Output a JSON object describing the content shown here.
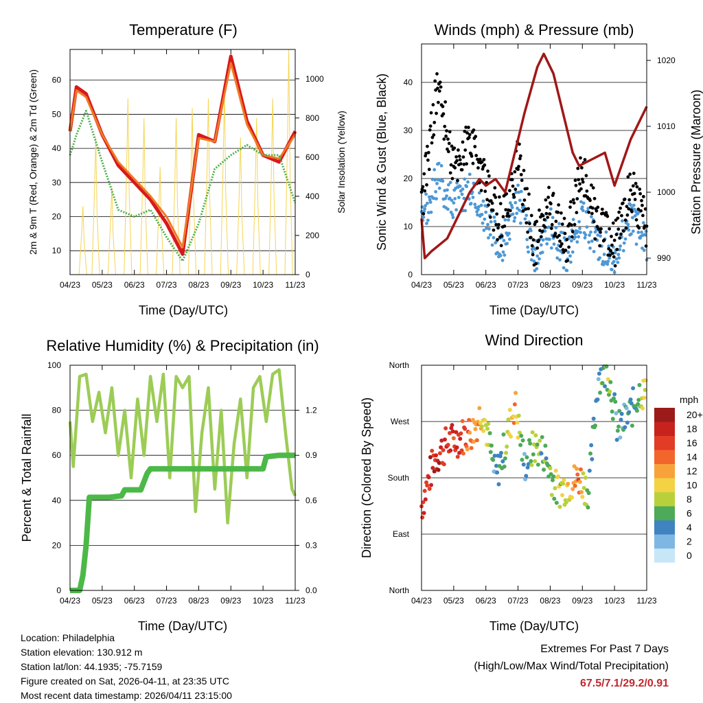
{
  "x_tick_labels": [
    "04/23",
    "05/23",
    "06/23",
    "07/23",
    "08/23",
    "09/23",
    "10/23",
    "11/23"
  ],
  "x_axis_title": "Time (Day/UTC)",
  "colors": {
    "temp_red": "#d7191c",
    "temp_orange": "#f07a24",
    "dewpoint_green": "#4daf4a",
    "solar_yellow": "#f5d451",
    "wind_blue": "#4d98d6",
    "gust_black": "#000000",
    "pressure_maroon": "#a01717",
    "rh_lightgreen": "#9ccc56",
    "precip_green": "#4cb848",
    "grid": "#000000"
  },
  "chart_data": [
    {
      "id": "temperature",
      "type": "line",
      "title": "Temperature (F)",
      "xlabel": "Time (Day/UTC)",
      "ylabel": "2m & 9m T (Red, Orange) & 2m Td (Green)",
      "y2label": "Solar Insolation (Yellow)",
      "ylim": [
        3,
        69
      ],
      "y2lim": [
        0,
        1150
      ],
      "yticks": [
        10,
        20,
        30,
        40,
        50,
        60
      ],
      "y2ticks": [
        0,
        200,
        400,
        600,
        800,
        1000
      ],
      "grid": true,
      "x": [
        0,
        0.2,
        0.5,
        1.0,
        1.5,
        2.0,
        2.5,
        3.0,
        3.5,
        4.0,
        4.5,
        5.0,
        5.5,
        6.0,
        6.5,
        7.0
      ],
      "series": [
        {
          "name": "2m T",
          "color": "#d7191c",
          "values": [
            45,
            58,
            56,
            44,
            35,
            30,
            25,
            18,
            9,
            44,
            42,
            67,
            48,
            38,
            36,
            45
          ]
        },
        {
          "name": "9m T",
          "color": "#f07a24",
          "values": [
            45,
            57,
            55,
            44,
            36,
            31,
            26,
            20,
            11,
            43,
            42,
            65,
            47,
            38,
            37,
            44
          ]
        },
        {
          "name": "2m Td",
          "color": "#4daf4a",
          "values": [
            38,
            44,
            51,
            36,
            22,
            20,
            22,
            14,
            7,
            18,
            34,
            38,
            41,
            38,
            38,
            24
          ]
        },
        {
          "name": "Solar Insolation",
          "color": "#f5d451",
          "axis": "y2",
          "peaks_x": [
            0.4,
            0.8,
            1.3,
            1.8,
            2.3,
            2.8,
            3.3,
            3.8,
            4.3,
            4.8,
            5.3,
            5.8,
            6.3,
            6.8
          ],
          "peaks": [
            350,
            700,
            450,
            900,
            800,
            550,
            800,
            850,
            900,
            950,
            700,
            800,
            900,
            1150
          ]
        }
      ]
    },
    {
      "id": "winds",
      "type": "scatter",
      "title": "Winds (mph) & Pressure (mb)",
      "xlabel": "Time (Day/UTC)",
      "ylabel": "Sonic Wind & Gust (Blue, Black)",
      "y2label": "Station Pressure (Maroon)",
      "ylim": [
        0,
        48
      ],
      "y2lim": [
        987.5,
        1022.5
      ],
      "yticks": [
        0,
        10,
        20,
        30,
        40
      ],
      "y2ticks": [
        990,
        1000,
        1010,
        1020
      ],
      "grid": true,
      "x": [
        0,
        0.5,
        1.0,
        1.5,
        2.0,
        2.5,
        3.0,
        3.5,
        4.0,
        4.5,
        5.0,
        5.5,
        6.0,
        6.5,
        7.0
      ],
      "series": [
        {
          "name": "Sonic Wind",
          "color": "#4d98d6",
          "values": [
            10,
            20,
            15,
            18,
            12,
            6,
            16,
            3,
            10,
            4,
            12,
            6,
            4,
            12,
            7
          ]
        },
        {
          "name": "Gust",
          "color": "#000000",
          "values": [
            14,
            40,
            22,
            28,
            18,
            10,
            24,
            6,
            15,
            6,
            22,
            10,
            6,
            18,
            10
          ]
        },
        {
          "name": "Station Pressure",
          "color": "#a01717",
          "axis": "y2",
          "x": [
            0,
            0.1,
            0.3,
            0.8,
            1.2,
            1.5,
            1.8,
            2.0,
            2.3,
            2.6,
            2.9,
            3.2,
            3.6,
            3.8,
            4.1,
            4.4,
            4.7,
            4.9,
            5.3,
            5.7,
            6.0,
            6.5,
            6.8,
            7.0
          ],
          "values": [
            996,
            990,
            991,
            993,
            997,
            1000,
            1002,
            1001,
            1002,
            1000,
            1006,
            1012,
            1019,
            1021,
            1018,
            1012,
            1006,
            1004,
            1005,
            1006,
            1001,
            1008,
            1011,
            1013
          ]
        }
      ]
    },
    {
      "id": "humidity",
      "type": "line",
      "title": "Relative Humidity (%) & Precipitation (in)",
      "xlabel": "Time (Day/UTC)",
      "ylabel": "Percent & Total Rainfall",
      "ylim": [
        0,
        100
      ],
      "y2lim": [
        0,
        1.5
      ],
      "yticks": [
        0,
        20,
        40,
        60,
        80,
        100
      ],
      "y2ticks": [
        "0.0",
        "0.3",
        "0.6",
        "0.9",
        "1.2"
      ],
      "grid": true,
      "series": [
        {
          "name": "Relative Humidity",
          "color": "#9ccc56",
          "x": [
            0,
            0.1,
            0.3,
            0.5,
            0.7,
            0.9,
            1.1,
            1.3,
            1.5,
            1.7,
            1.9,
            2.1,
            2.3,
            2.5,
            2.7,
            2.9,
            3.1,
            3.3,
            3.5,
            3.7,
            3.9,
            4.1,
            4.3,
            4.5,
            4.7,
            4.9,
            5.1,
            5.3,
            5.5,
            5.7,
            5.9,
            6.1,
            6.3,
            6.5,
            6.7,
            6.9,
            7.0
          ],
          "values": [
            75,
            55,
            95,
            96,
            75,
            88,
            70,
            90,
            60,
            80,
            50,
            85,
            60,
            95,
            75,
            96,
            50,
            95,
            90,
            95,
            35,
            70,
            90,
            45,
            80,
            30,
            65,
            85,
            50,
            90,
            95,
            75,
            96,
            98,
            70,
            45,
            42
          ]
        },
        {
          "name": "Total Precipitation",
          "color": "#4cb848",
          "axis": "y2",
          "x": [
            0,
            0.3,
            0.4,
            0.5,
            0.6,
            1.2,
            1.6,
            1.7,
            2.2,
            2.4,
            2.5,
            4.5,
            6.0,
            6.1,
            6.5,
            7.0
          ],
          "values": [
            0,
            0,
            0.1,
            0.3,
            0.62,
            0.62,
            0.63,
            0.67,
            0.67,
            0.78,
            0.81,
            0.81,
            0.81,
            0.89,
            0.9,
            0.9
          ]
        }
      ]
    },
    {
      "id": "direction",
      "type": "scatter",
      "title": "Wind Direction",
      "xlabel": "Time (Day/UTC)",
      "ylabel": "Direction (Colored By Speed)",
      "ylim": [
        0,
        360
      ],
      "ytick_labels": [
        "North",
        "East",
        "South",
        "West",
        "North"
      ],
      "grid": true,
      "colorbar": {
        "title": "mph",
        "labels": [
          "20+",
          "18",
          "16",
          "14",
          "12",
          "10",
          "8",
          "6",
          "4",
          "2",
          "0"
        ],
        "colors": [
          "#9b1b1b",
          "#c8221f",
          "#e23b26",
          "#f2662b",
          "#f8a23c",
          "#f3d243",
          "#b8d13b",
          "#4caa59",
          "#3f83c1",
          "#7fb7e4",
          "#c7e6f8"
        ]
      },
      "series": [
        {
          "name": "Direction",
          "x": [
            0,
            0.4,
            0.8,
            1.2,
            1.6,
            1.9,
            2.3,
            2.6,
            2.9,
            3.2,
            3.5,
            3.8,
            4.2,
            4.6,
            4.9,
            5.2,
            5.5,
            5.8,
            6.1,
            6.5,
            6.8,
            7.0
          ],
          "values": [
            135,
            210,
            235,
            245,
            255,
            290,
            180,
            230,
            300,
            200,
            230,
            220,
            160,
            170,
            180,
            160,
            345,
            350,
            255,
            285,
            320,
            310
          ],
          "speeds": [
            16,
            18,
            17,
            16,
            14,
            10,
            3,
            6,
            14,
            2,
            8,
            6,
            8,
            10,
            14,
            5,
            4,
            8,
            4,
            4,
            8,
            10
          ]
        }
      ]
    }
  ],
  "colorbar_title": "mph",
  "info": {
    "location": "Location: Philadelphia",
    "elevation": "Station elevation: 130.912 m",
    "latlon": "Station lat/lon: 44.1935; -75.7159",
    "created": "Figure created on Sat, 2026-04-11, at 23:35 UTC",
    "latest": "Most recent data timestamp: 2026/04/11 23:15:00"
  },
  "extremes": {
    "title": "Extremes For Past 7 Days",
    "subtitle": "(High/Low/Max Wind/Total Precipitation)",
    "values": "67.5/7.1/29.2/0.91"
  }
}
